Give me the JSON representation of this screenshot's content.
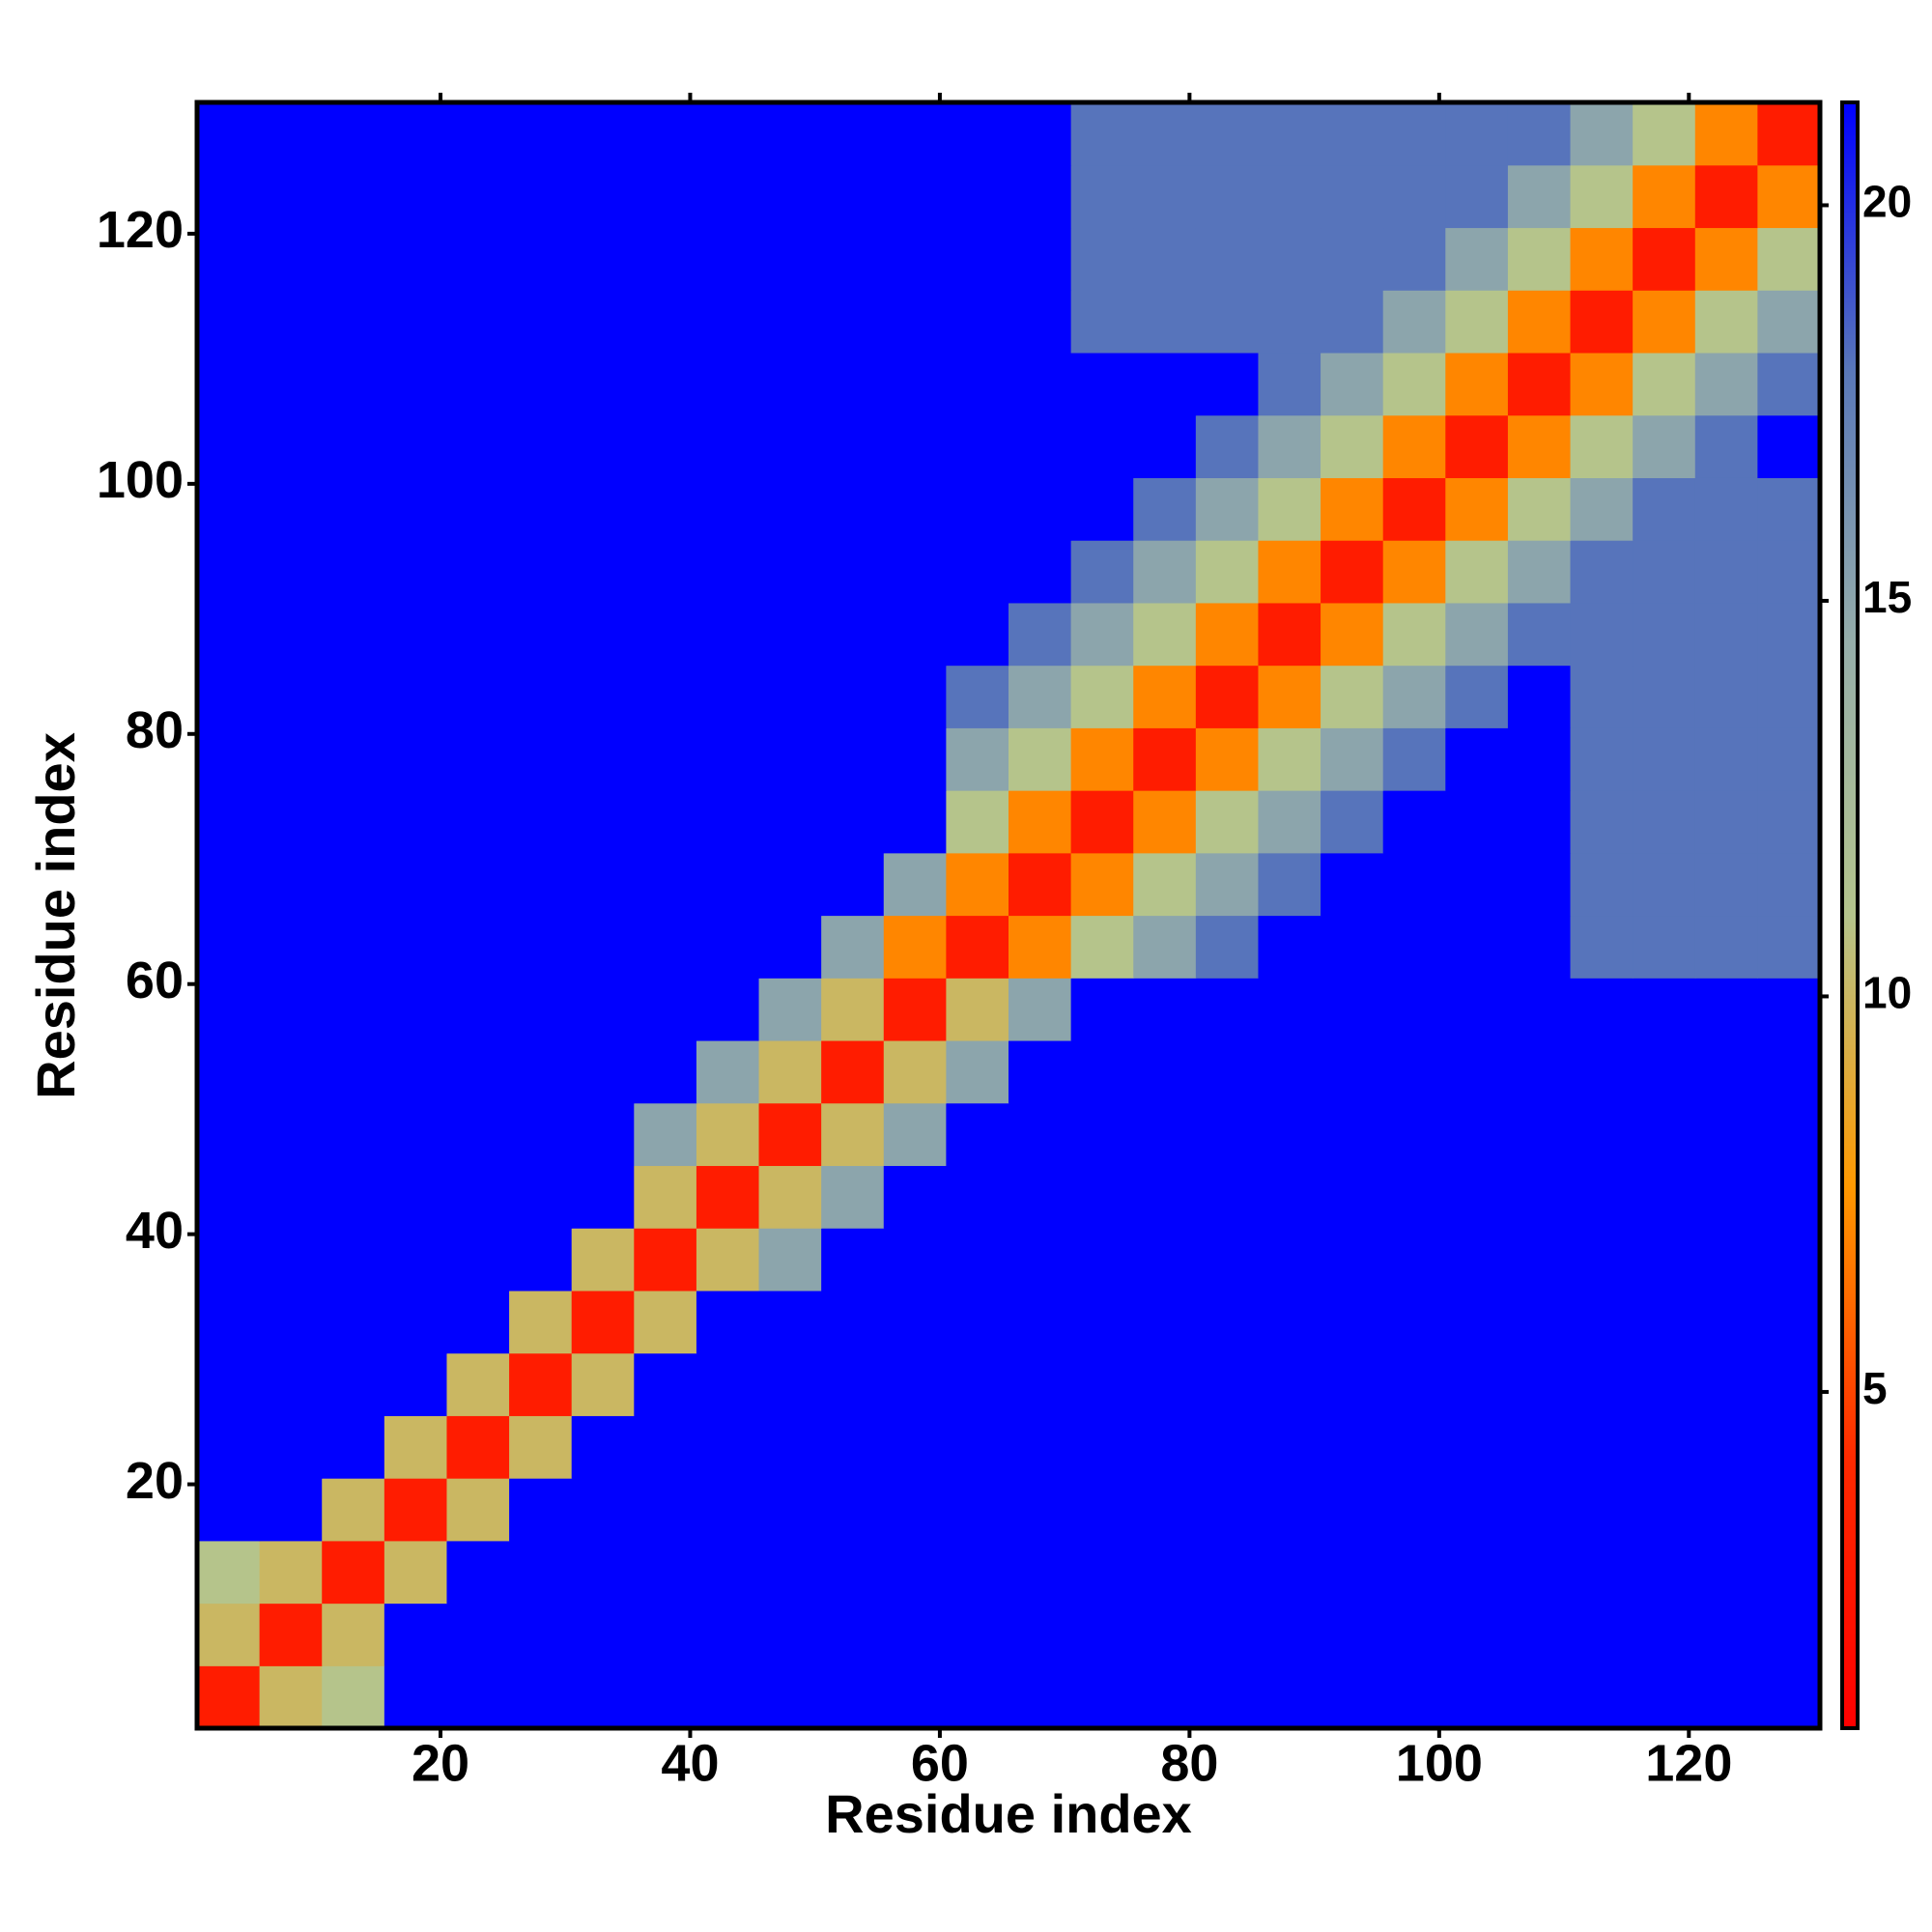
{
  "chart_data": {
    "type": "heatmap",
    "xlabel": "Residue index",
    "ylabel": "Residue index",
    "x": [
      3,
      8,
      13,
      18,
      23,
      28,
      33,
      38,
      43,
      48,
      53,
      58,
      63,
      68,
      73,
      78,
      83,
      88,
      93,
      98,
      103,
      108,
      113,
      118,
      123,
      128
    ],
    "y": [
      3,
      8,
      13,
      18,
      23,
      28,
      33,
      38,
      43,
      48,
      53,
      58,
      63,
      68,
      73,
      78,
      83,
      88,
      93,
      98,
      103,
      108,
      113,
      118,
      123,
      128
    ],
    "z": [
      [
        3,
        10,
        11,
        22,
        22,
        22,
        22,
        22,
        22,
        22,
        22,
        22,
        22,
        22,
        22,
        22,
        22,
        22,
        22,
        22,
        22,
        22,
        22,
        22,
        22,
        22
      ],
      [
        10,
        3,
        10,
        22,
        22,
        22,
        22,
        22,
        22,
        22,
        22,
        22,
        22,
        22,
        22,
        22,
        22,
        22,
        22,
        22,
        22,
        22,
        22,
        22,
        22,
        22
      ],
      [
        11,
        10,
        3,
        10,
        22,
        22,
        22,
        22,
        22,
        22,
        22,
        22,
        22,
        22,
        22,
        22,
        22,
        22,
        22,
        22,
        22,
        22,
        22,
        22,
        22,
        22
      ],
      [
        22,
        22,
        10,
        3,
        10,
        22,
        22,
        22,
        22,
        22,
        22,
        22,
        22,
        22,
        22,
        22,
        22,
        22,
        22,
        22,
        22,
        22,
        22,
        22,
        22,
        22
      ],
      [
        22,
        22,
        22,
        10,
        3,
        10,
        22,
        22,
        22,
        22,
        22,
        22,
        22,
        22,
        22,
        22,
        22,
        22,
        22,
        22,
        22,
        22,
        22,
        22,
        22,
        22
      ],
      [
        22,
        22,
        22,
        22,
        10,
        3,
        10,
        22,
        22,
        22,
        22,
        22,
        22,
        22,
        22,
        22,
        22,
        22,
        22,
        22,
        22,
        22,
        22,
        22,
        22,
        22
      ],
      [
        22,
        22,
        22,
        22,
        22,
        10,
        3,
        10,
        22,
        22,
        22,
        22,
        22,
        22,
        22,
        22,
        22,
        22,
        22,
        22,
        22,
        22,
        22,
        22,
        22,
        22
      ],
      [
        22,
        22,
        22,
        22,
        22,
        22,
        10,
        3,
        10,
        15,
        22,
        22,
        22,
        22,
        22,
        22,
        22,
        22,
        22,
        22,
        22,
        22,
        22,
        22,
        22,
        22
      ],
      [
        22,
        22,
        22,
        22,
        22,
        22,
        22,
        10,
        3,
        10,
        15,
        22,
        22,
        22,
        22,
        22,
        22,
        22,
        22,
        22,
        22,
        22,
        22,
        22,
        22,
        22
      ],
      [
        22,
        22,
        22,
        22,
        22,
        22,
        22,
        15,
        10,
        3,
        10,
        15,
        22,
        22,
        22,
        22,
        22,
        22,
        22,
        22,
        22,
        22,
        22,
        22,
        22,
        22
      ],
      [
        22,
        22,
        22,
        22,
        22,
        22,
        22,
        22,
        15,
        10,
        3,
        10,
        15,
        22,
        22,
        22,
        22,
        22,
        22,
        22,
        22,
        22,
        22,
        22,
        22,
        22
      ],
      [
        22,
        22,
        22,
        22,
        22,
        22,
        22,
        22,
        22,
        15,
        10,
        3,
        10,
        15,
        22,
        22,
        22,
        22,
        22,
        22,
        22,
        22,
        22,
        22,
        22,
        22
      ],
      [
        22,
        22,
        22,
        22,
        22,
        22,
        22,
        22,
        22,
        22,
        15,
        7,
        3,
        7,
        11,
        15,
        18,
        22,
        22,
        22,
        22,
        22,
        18,
        18,
        18,
        18
      ],
      [
        22,
        22,
        22,
        22,
        22,
        22,
        22,
        22,
        22,
        22,
        22,
        15,
        7,
        3,
        7,
        11,
        15,
        18,
        22,
        22,
        22,
        22,
        18,
        18,
        18,
        18
      ],
      [
        22,
        22,
        22,
        22,
        22,
        22,
        22,
        22,
        22,
        22,
        22,
        22,
        11,
        7,
        3,
        7,
        11,
        15,
        18,
        22,
        22,
        22,
        18,
        18,
        18,
        18
      ],
      [
        22,
        22,
        22,
        22,
        22,
        22,
        22,
        22,
        22,
        22,
        22,
        22,
        15,
        11,
        7,
        3,
        7,
        11,
        15,
        18,
        22,
        22,
        18,
        18,
        18,
        18
      ],
      [
        22,
        22,
        22,
        22,
        22,
        22,
        22,
        22,
        22,
        22,
        22,
        22,
        18,
        15,
        11,
        7,
        3,
        7,
        11,
        15,
        18,
        22,
        18,
        18,
        18,
        18
      ],
      [
        22,
        22,
        22,
        22,
        22,
        22,
        22,
        22,
        22,
        22,
        22,
        22,
        22,
        18,
        15,
        11,
        7,
        3,
        7,
        11,
        15,
        18,
        18,
        18,
        18,
        18
      ],
      [
        22,
        22,
        22,
        22,
        22,
        22,
        22,
        22,
        22,
        22,
        22,
        22,
        22,
        22,
        18,
        15,
        11,
        7,
        3,
        7,
        11,
        15,
        18,
        18,
        18,
        18
      ],
      [
        22,
        22,
        22,
        22,
        22,
        22,
        22,
        22,
        22,
        22,
        22,
        22,
        22,
        22,
        22,
        18,
        15,
        11,
        7,
        3,
        7,
        11,
        15,
        18,
        18,
        18
      ],
      [
        22,
        22,
        22,
        22,
        22,
        22,
        22,
        22,
        22,
        22,
        22,
        22,
        22,
        22,
        22,
        22,
        18,
        15,
        11,
        7,
        3,
        7,
        11,
        15,
        18,
        22
      ],
      [
        22,
        22,
        22,
        22,
        22,
        22,
        22,
        22,
        22,
        22,
        22,
        22,
        22,
        22,
        22,
        22,
        22,
        18,
        15,
        11,
        7,
        3,
        7,
        11,
        15,
        18
      ],
      [
        22,
        22,
        22,
        22,
        22,
        22,
        22,
        22,
        22,
        22,
        22,
        22,
        22,
        22,
        18,
        18,
        18,
        18,
        18,
        15,
        11,
        7,
        3,
        7,
        11,
        15
      ],
      [
        22,
        22,
        22,
        22,
        22,
        22,
        22,
        22,
        22,
        22,
        22,
        22,
        22,
        22,
        18,
        18,
        18,
        18,
        18,
        18,
        15,
        11,
        7,
        3,
        7,
        11
      ],
      [
        22,
        22,
        22,
        22,
        22,
        22,
        22,
        22,
        22,
        22,
        22,
        22,
        22,
        22,
        18,
        18,
        18,
        18,
        18,
        18,
        18,
        15,
        11,
        7,
        3,
        7
      ],
      [
        22,
        22,
        22,
        22,
        22,
        22,
        22,
        22,
        22,
        22,
        22,
        22,
        22,
        22,
        18,
        18,
        18,
        18,
        18,
        18,
        18,
        18,
        15,
        11,
        7,
        3
      ]
    ],
    "cell_size": 5,
    "xlim": [
      0.5,
      130.5
    ],
    "ylim": [
      0.5,
      130.5
    ],
    "xticks": [
      20,
      40,
      60,
      80,
      100,
      120
    ],
    "yticks": [
      20,
      40,
      60,
      80,
      100,
      120
    ],
    "clim": [
      0.75,
      21.3
    ],
    "cbar_ticks": [
      5,
      10,
      15,
      20
    ],
    "colors": [
      "#ff0000",
      "#ff2a00",
      "#ff9900",
      "#b4c48c",
      "#96aeaa",
      "#5a78b8",
      "#0000ff"
    ]
  }
}
